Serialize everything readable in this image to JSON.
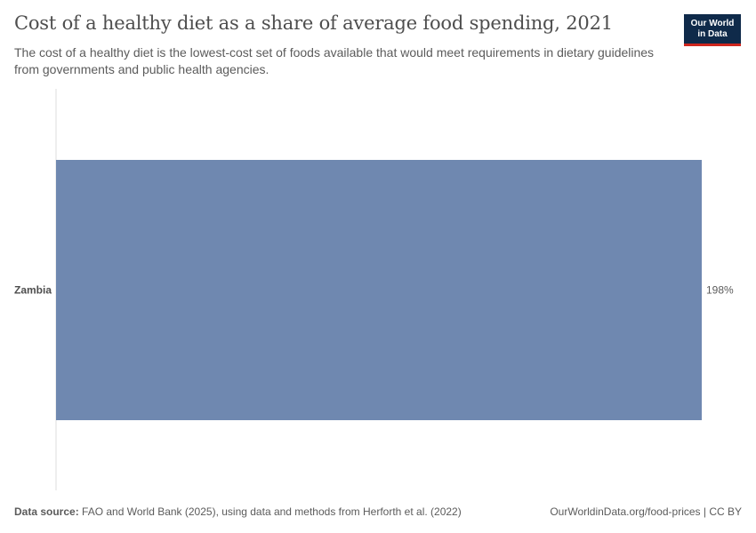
{
  "header": {
    "title": "Cost of a healthy diet as a share of average food spending, 2021",
    "subtitle": "The cost of a healthy diet is the lowest-cost set of foods available that would meet requirements in dietary guidelines from governments and public health agencies.",
    "logo_line1": "Our World",
    "logo_line2": "in Data"
  },
  "colors": {
    "bar": "#6f88b0",
    "axis": "#dddddd",
    "logo_bg": "#0f2a4a",
    "logo_accent": "#ce261e"
  },
  "chart_data": {
    "type": "bar",
    "orientation": "horizontal",
    "categories": [
      "Zambia"
    ],
    "values": [
      198
    ],
    "value_labels": [
      "198%"
    ],
    "unit": "%",
    "xlim": [
      0,
      198
    ],
    "grid": false,
    "title": "Cost of a healthy diet as a share of average food spending, 2021"
  },
  "footer": {
    "source_label": "Data source:",
    "source_text": "FAO and World Bank (2025), using data and methods from Herforth et al. (2022)",
    "right_text": "OurWorldinData.org/food-prices | CC BY"
  }
}
